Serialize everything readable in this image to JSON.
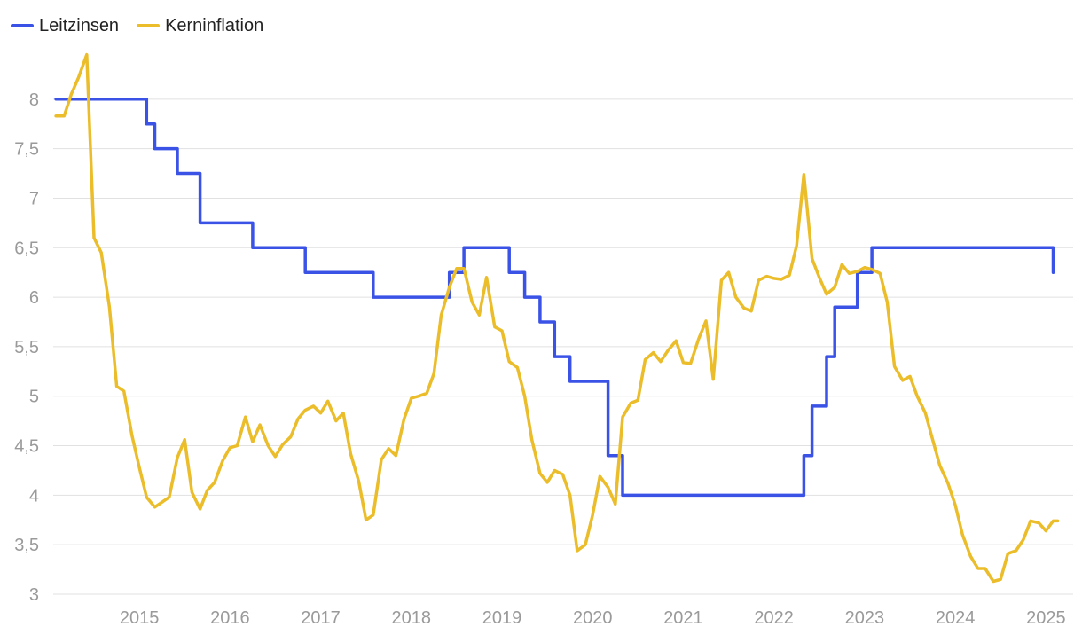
{
  "legend": {
    "series": [
      {
        "label": "Leitzinsen",
        "color": "#3a53e6"
      },
      {
        "label": "Kerninflation",
        "color": "#ebbd2a"
      }
    ]
  },
  "chart_data": {
    "type": "line",
    "legend_position": "top-left",
    "grid": true,
    "xlim": [
      2014.05,
      2025.3
    ],
    "ylim": [
      3,
      8.5
    ],
    "x_ticks": [
      "2015",
      "2016",
      "2017",
      "2018",
      "2019",
      "2020",
      "2021",
      "2022",
      "2023",
      "2024",
      "2025"
    ],
    "y_ticks": [
      "8",
      "7,5",
      "7",
      "6,5",
      "6",
      "5,5",
      "5",
      "4,5",
      "4",
      "3,5",
      "3"
    ],
    "series": [
      {
        "name": "Leitzinsen",
        "color": "#3a53e6",
        "step": true,
        "points": [
          [
            2014.08,
            8.0
          ],
          [
            2014.92,
            8.0
          ],
          [
            2015.08,
            7.75
          ],
          [
            2015.17,
            7.5
          ],
          [
            2015.42,
            7.25
          ],
          [
            2015.67,
            6.75
          ],
          [
            2016.25,
            6.5
          ],
          [
            2016.83,
            6.25
          ],
          [
            2017.58,
            6.0
          ],
          [
            2018.42,
            6.25
          ],
          [
            2018.58,
            6.5
          ],
          [
            2019.08,
            6.25
          ],
          [
            2019.25,
            6.0
          ],
          [
            2019.42,
            5.75
          ],
          [
            2019.58,
            5.4
          ],
          [
            2019.75,
            5.15
          ],
          [
            2020.17,
            4.4
          ],
          [
            2020.33,
            4.0
          ],
          [
            2022.33,
            4.4
          ],
          [
            2022.42,
            4.9
          ],
          [
            2022.58,
            5.4
          ],
          [
            2022.67,
            5.9
          ],
          [
            2022.92,
            6.25
          ],
          [
            2023.08,
            6.5
          ],
          [
            2025.08,
            6.25
          ]
        ]
      },
      {
        "name": "Kerninflation",
        "color": "#ebbd2a",
        "step": false,
        "points": [
          [
            2014.08,
            7.83
          ],
          [
            2014.17,
            7.83
          ],
          [
            2014.25,
            8.05
          ],
          [
            2014.33,
            8.22
          ],
          [
            2014.42,
            8.45
          ],
          [
            2014.5,
            6.6
          ],
          [
            2014.58,
            6.45
          ],
          [
            2014.67,
            5.9
          ],
          [
            2014.75,
            5.1
          ],
          [
            2014.83,
            5.05
          ],
          [
            2014.92,
            4.6
          ],
          [
            2015.0,
            4.28
          ],
          [
            2015.08,
            3.98
          ],
          [
            2015.17,
            3.88
          ],
          [
            2015.25,
            3.93
          ],
          [
            2015.33,
            3.98
          ],
          [
            2015.42,
            4.38
          ],
          [
            2015.5,
            4.56
          ],
          [
            2015.58,
            4.03
          ],
          [
            2015.67,
            3.86
          ],
          [
            2015.75,
            4.05
          ],
          [
            2015.83,
            4.13
          ],
          [
            2015.92,
            4.35
          ],
          [
            2016.0,
            4.48
          ],
          [
            2016.08,
            4.5
          ],
          [
            2016.17,
            4.79
          ],
          [
            2016.25,
            4.54
          ],
          [
            2016.33,
            4.71
          ],
          [
            2016.42,
            4.5
          ],
          [
            2016.5,
            4.39
          ],
          [
            2016.58,
            4.51
          ],
          [
            2016.67,
            4.59
          ],
          [
            2016.75,
            4.77
          ],
          [
            2016.83,
            4.86
          ],
          [
            2016.92,
            4.9
          ],
          [
            2017.0,
            4.83
          ],
          [
            2017.08,
            4.95
          ],
          [
            2017.17,
            4.75
          ],
          [
            2017.25,
            4.83
          ],
          [
            2017.33,
            4.42
          ],
          [
            2017.42,
            4.14
          ],
          [
            2017.5,
            3.75
          ],
          [
            2017.58,
            3.8
          ],
          [
            2017.67,
            4.36
          ],
          [
            2017.75,
            4.47
          ],
          [
            2017.83,
            4.4
          ],
          [
            2017.92,
            4.77
          ],
          [
            2018.0,
            4.98
          ],
          [
            2018.08,
            5.0
          ],
          [
            2018.17,
            5.03
          ],
          [
            2018.25,
            5.23
          ],
          [
            2018.33,
            5.82
          ],
          [
            2018.42,
            6.1
          ],
          [
            2018.5,
            6.29
          ],
          [
            2018.58,
            6.29
          ],
          [
            2018.67,
            5.95
          ],
          [
            2018.75,
            5.82
          ],
          [
            2018.83,
            6.2
          ],
          [
            2018.92,
            5.7
          ],
          [
            2019.0,
            5.66
          ],
          [
            2019.08,
            5.35
          ],
          [
            2019.17,
            5.29
          ],
          [
            2019.25,
            5.0
          ],
          [
            2019.33,
            4.56
          ],
          [
            2019.42,
            4.22
          ],
          [
            2019.5,
            4.13
          ],
          [
            2019.58,
            4.25
          ],
          [
            2019.67,
            4.21
          ],
          [
            2019.75,
            4.0
          ],
          [
            2019.83,
            3.44
          ],
          [
            2019.92,
            3.5
          ],
          [
            2020.0,
            3.8
          ],
          [
            2020.08,
            4.19
          ],
          [
            2020.17,
            4.08
          ],
          [
            2020.25,
            3.91
          ],
          [
            2020.33,
            4.79
          ],
          [
            2020.42,
            4.93
          ],
          [
            2020.5,
            4.96
          ],
          [
            2020.58,
            5.37
          ],
          [
            2020.67,
            5.44
          ],
          [
            2020.75,
            5.35
          ],
          [
            2020.83,
            5.46
          ],
          [
            2020.92,
            5.56
          ],
          [
            2021.0,
            5.34
          ],
          [
            2021.08,
            5.33
          ],
          [
            2021.17,
            5.58
          ],
          [
            2021.25,
            5.76
          ],
          [
            2021.33,
            5.17
          ],
          [
            2021.42,
            6.17
          ],
          [
            2021.5,
            6.25
          ],
          [
            2021.58,
            6.0
          ],
          [
            2021.67,
            5.89
          ],
          [
            2021.75,
            5.86
          ],
          [
            2021.83,
            6.17
          ],
          [
            2021.92,
            6.21
          ],
          [
            2022.0,
            6.19
          ],
          [
            2022.08,
            6.18
          ],
          [
            2022.17,
            6.22
          ],
          [
            2022.25,
            6.52
          ],
          [
            2022.33,
            7.24
          ],
          [
            2022.42,
            6.39
          ],
          [
            2022.5,
            6.2
          ],
          [
            2022.58,
            6.03
          ],
          [
            2022.67,
            6.1
          ],
          [
            2022.75,
            6.33
          ],
          [
            2022.83,
            6.24
          ],
          [
            2022.92,
            6.26
          ],
          [
            2023.0,
            6.3
          ],
          [
            2023.08,
            6.28
          ],
          [
            2023.17,
            6.24
          ],
          [
            2023.25,
            5.95
          ],
          [
            2023.33,
            5.3
          ],
          [
            2023.42,
            5.16
          ],
          [
            2023.5,
            5.2
          ],
          [
            2023.58,
            5.0
          ],
          [
            2023.67,
            4.83
          ],
          [
            2023.75,
            4.56
          ],
          [
            2023.83,
            4.3
          ],
          [
            2023.92,
            4.12
          ],
          [
            2024.0,
            3.9
          ],
          [
            2024.08,
            3.6
          ],
          [
            2024.17,
            3.38
          ],
          [
            2024.25,
            3.26
          ],
          [
            2024.33,
            3.26
          ],
          [
            2024.42,
            3.13
          ],
          [
            2024.5,
            3.15
          ],
          [
            2024.58,
            3.41
          ],
          [
            2024.67,
            3.44
          ],
          [
            2024.75,
            3.55
          ],
          [
            2024.83,
            3.74
          ],
          [
            2024.92,
            3.72
          ],
          [
            2025.0,
            3.64
          ],
          [
            2025.08,
            3.74
          ],
          [
            2025.13,
            3.74
          ]
        ]
      }
    ]
  }
}
